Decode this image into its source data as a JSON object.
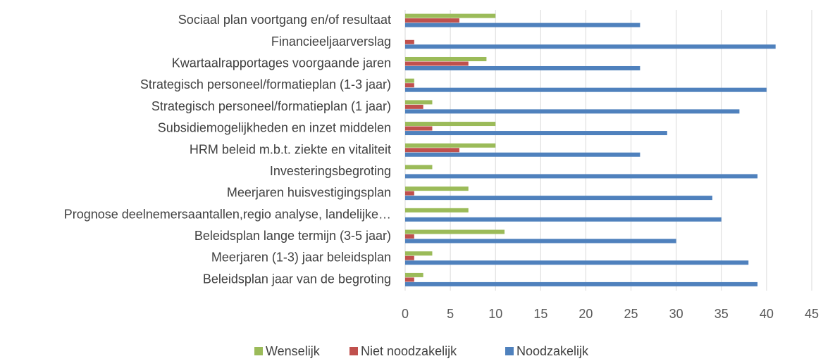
{
  "chart_data": {
    "type": "hbar",
    "categories": [
      "Sociaal plan voortgang en/of resultaat",
      "Financieeljaarverslag",
      "Kwartaalrapportages voorgaande jaren",
      "Strategisch personeel/formatieplan (1-3 jaar)",
      "Strategisch personeel/formatieplan (1 jaar)",
      "Subsidiemogelijkheden en inzet middelen",
      "HRM beleid m.b.t. ziekte en vitaliteit",
      "Investeringsbegroting",
      "Meerjaren huisvestigingsplan",
      "Prognose deelnemersaantallen,regio analyse, landelijke…",
      "Beleidsplan lange termijn (3-5 jaar)",
      "Meerjaren (1-3) jaar beleidsplan",
      "Beleidsplan jaar van de begroting"
    ],
    "series": [
      {
        "name": "Wenselijk",
        "color": "#9bbb59",
        "values": [
          10,
          0,
          9,
          1,
          3,
          10,
          10,
          3,
          7,
          7,
          11,
          3,
          2
        ]
      },
      {
        "name": "Niet noodzakelijk",
        "color": "#c0504d",
        "values": [
          6,
          1,
          7,
          1,
          2,
          3,
          6,
          0,
          1,
          0,
          1,
          1,
          1
        ]
      },
      {
        "name": "Noodzakelijk",
        "color": "#4f81bd",
        "values": [
          26,
          41,
          26,
          40,
          37,
          29,
          26,
          39,
          34,
          35,
          30,
          38,
          39
        ]
      }
    ],
    "xlim": [
      0,
      45
    ],
    "xticks": [
      0,
      5,
      10,
      15,
      20,
      25,
      30,
      35,
      40,
      45
    ],
    "grid": true,
    "legend": "bottom"
  }
}
